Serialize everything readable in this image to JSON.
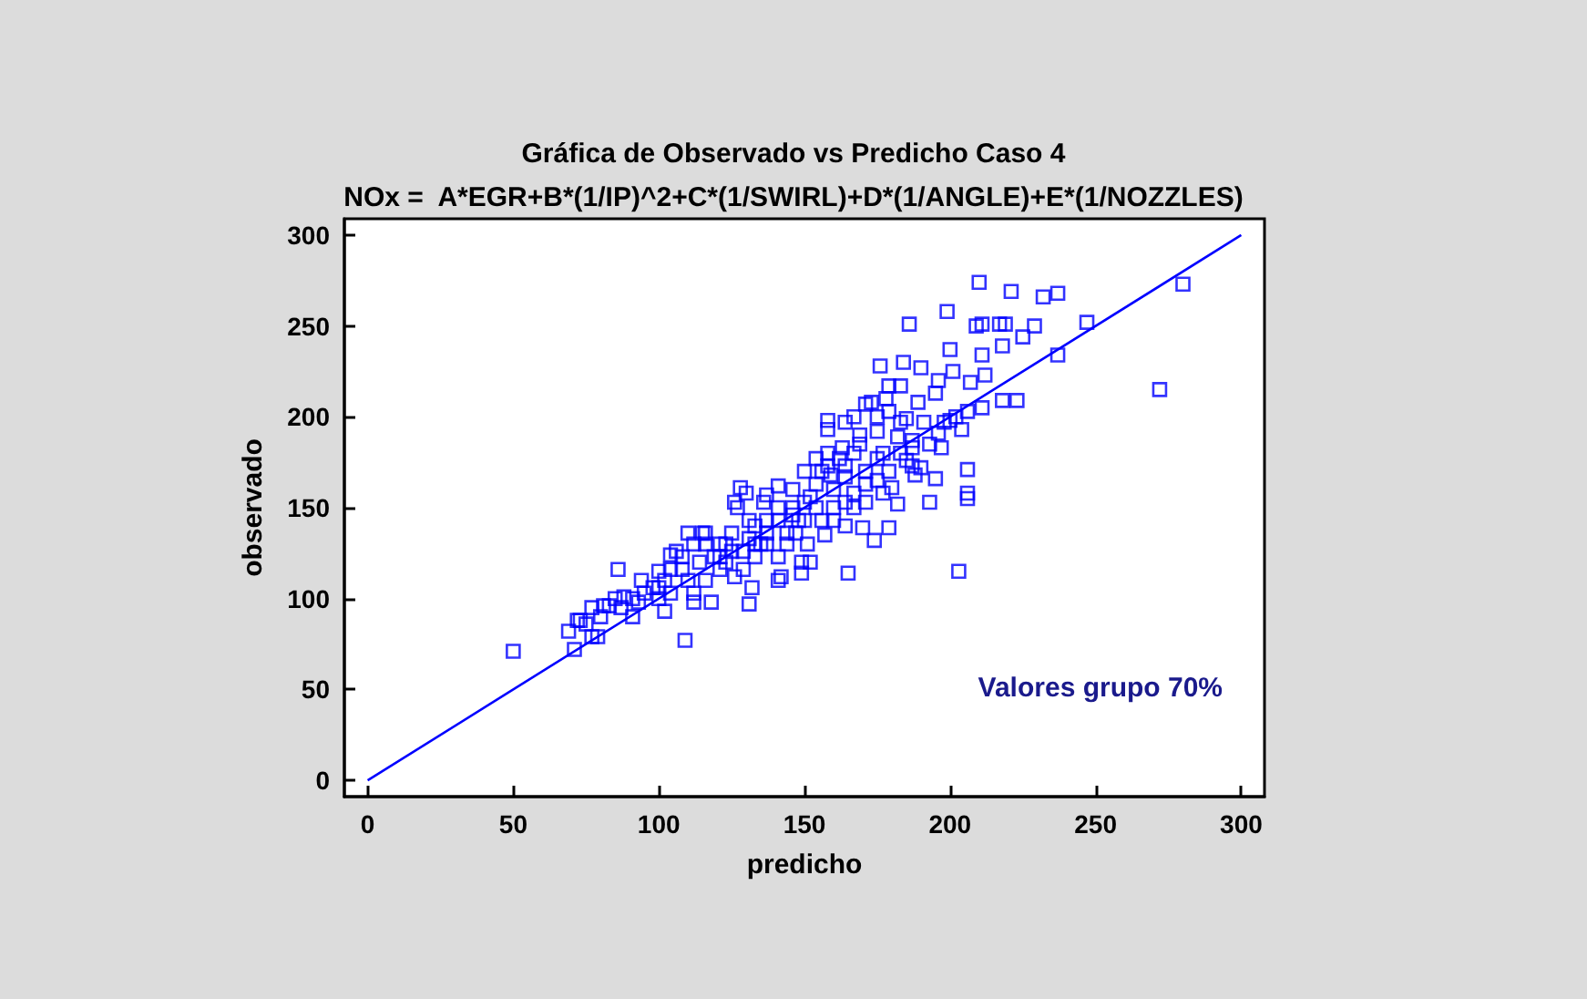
{
  "chart_data": {
    "type": "scatter",
    "title": "Gráfica de Observado vs Predicho Caso 4",
    "subtitle": "NOx =  A*EGR+B*(1/IP)^2+C*(1/SWIRL)+D*(1/ANGLE)+E*(1/NOZZLES)",
    "xlabel": "predicho",
    "ylabel": "observado",
    "annotations": [
      "Valores grupo 70%"
    ],
    "xlim": [
      -8,
      308
    ],
    "ylim": [
      -9,
      309
    ],
    "xticks": [
      0,
      50,
      100,
      150,
      200,
      250,
      300
    ],
    "yticks": [
      0,
      50,
      100,
      150,
      200,
      250,
      300
    ],
    "marker": "square",
    "series": [
      {
        "color": "#0000ff",
        "x": [
          50,
          71,
          69,
          77,
          79,
          72,
          73,
          77,
          81,
          86,
          91,
          88,
          85,
          93,
          94,
          100,
          102,
          109,
          104,
          112,
          118,
          115,
          121,
          131,
          132,
          126,
          128,
          126,
          130,
          136,
          141,
          141,
          142,
          149,
          149,
          152,
          165,
          154,
          158,
          158,
          164,
          171,
          176,
          186,
          184,
          190,
          199,
          200,
          210,
          211,
          209,
          221,
          217,
          219,
          225,
          229,
          232,
          237,
          247,
          237,
          280,
          272,
          218,
          211,
          212,
          207,
          218,
          223,
          211,
          206,
          206,
          206,
          206,
          203,
          193,
          195,
          182,
          179,
          174,
          170,
          180,
          196,
          201,
          200,
          204,
          187,
          190,
          189,
          195,
          179,
          183,
          178,
          173,
          167,
          185,
          175,
          182,
          169,
          187,
          193,
          197,
          163,
          177,
          164,
          171,
          179,
          159,
          167,
          171,
          175,
          160,
          164,
          157,
          151,
          147,
          146,
          152,
          156,
          150,
          160,
          164,
          146,
          137,
          141,
          133,
          137,
          131,
          125,
          133,
          121,
          116,
          112,
          108,
          106,
          110,
          104,
          98,
          100,
          95,
          91,
          87,
          83,
          80,
          75,
          112,
          119,
          123,
          129,
          135,
          144,
          141,
          148,
          154,
          156,
          160,
          167,
          150,
          154,
          158,
          162,
          167,
          169,
          158,
          141,
          146,
          137,
          133,
          129,
          125,
          121,
          116,
          108,
          104,
          102,
          100,
          137,
          144,
          150,
          164,
          171,
          175,
          183,
          187,
          175,
          179,
          183,
          191,
          198,
          202,
          196,
          185,
          188,
          177,
          131,
          127,
          123,
          114,
          110,
          116
        ],
        "values": [
          71,
          72,
          82,
          79,
          79,
          88,
          88,
          95,
          96,
          116,
          90,
          101,
          100,
          98,
          110,
          115,
          93,
          77,
          124,
          98,
          98,
          136,
          130,
          97,
          106,
          112,
          161,
          153,
          158,
          153,
          162,
          110,
          112,
          114,
          120,
          120,
          114,
          177,
          198,
          193,
          197,
          207,
          228,
          251,
          230,
          227,
          258,
          237,
          274,
          251,
          250,
          269,
          251,
          251,
          244,
          250,
          266,
          268,
          252,
          234,
          273,
          215,
          239,
          234,
          223,
          219,
          209,
          209,
          205,
          203,
          171,
          158,
          155,
          115,
          153,
          166,
          152,
          139,
          132,
          139,
          161,
          220,
          225,
          198,
          193,
          173,
          172,
          208,
          213,
          217,
          217,
          210,
          208,
          200,
          199,
          192,
          189,
          185,
          187,
          185,
          183,
          183,
          180,
          173,
          170,
          170,
          168,
          158,
          153,
          165,
          150,
          140,
          135,
          130,
          136,
          150,
          156,
          170,
          170,
          160,
          167,
          160,
          157,
          143,
          140,
          130,
          133,
          126,
          123,
          116,
          110,
          103,
          116,
          126,
          110,
          103,
          106,
          100,
          103,
          100,
          95,
          96,
          90,
          86,
          130,
          123,
          120,
          116,
          130,
          130,
          123,
          143,
          150,
          143,
          143,
          150,
          153,
          163,
          173,
          177,
          180,
          190,
          180,
          150,
          146,
          143,
          130,
          126,
          136,
          123,
          130,
          123,
          116,
          110,
          106,
          136,
          136,
          143,
          153,
          163,
          177,
          180,
          183,
          200,
          203,
          197,
          197,
          197,
          200,
          191,
          176,
          168,
          158,
          143,
          150,
          130,
          120,
          136,
          136
        ]
      },
      {
        "type": "line",
        "color": "#0000ff",
        "marker": "none",
        "x": [
          0,
          300
        ],
        "values": [
          0,
          300
        ]
      }
    ]
  }
}
